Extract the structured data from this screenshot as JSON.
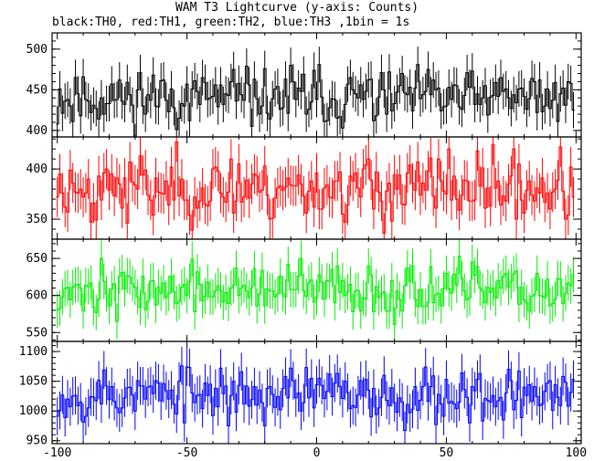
{
  "chart_data": {
    "type": "line",
    "style": "step-with-error-bars",
    "title": "WAM T3 Lightcurve (y-axis: Counts)",
    "subtitle": "black:TH0, red:TH1, green:TH2, blue:TH3 ,1bin = 1s",
    "xlabel": "",
    "ylabel": "",
    "xlim": [
      -102,
      102
    ],
    "x_ticks": [
      -100,
      -50,
      0,
      50,
      100
    ],
    "x_range": {
      "start": -100,
      "end": 99,
      "step": 1
    },
    "panels": [
      {
        "name": "TH0",
        "color": "#000000",
        "ylim": [
          392,
          520
        ],
        "y_ticks": [
          400,
          450,
          500
        ],
        "mean": 440,
        "std": 18,
        "error": 22,
        "seed": 11
      },
      {
        "name": "TH1",
        "color": "#ff0000",
        "ylim": [
          330,
          432
        ],
        "y_ticks": [
          350,
          400
        ],
        "mean": 381,
        "std": 17,
        "error": 20,
        "seed": 23
      },
      {
        "name": "TH2",
        "color": "#00ee00",
        "ylim": [
          538,
          676
        ],
        "y_ticks": [
          550,
          600,
          650
        ],
        "mean": 607,
        "std": 17,
        "error": 24,
        "seed": 37
      },
      {
        "name": "TH3",
        "color": "#0000ff",
        "ylim": [
          945,
          1117
        ],
        "y_ticks": [
          950,
          1000,
          1050,
          1100
        ],
        "mean": 1028,
        "std": 24,
        "error": 32,
        "seed": 53
      }
    ]
  }
}
